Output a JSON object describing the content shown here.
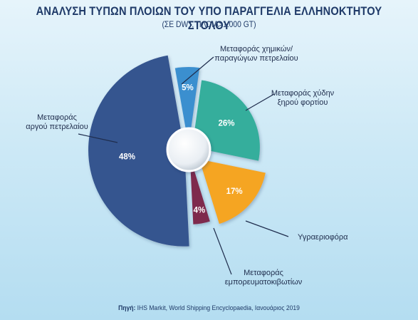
{
  "header": {
    "title": "ΑΝΑΛΥΣΗ ΤΥΠΩΝ ΠΛΟΙΩΝ ΤΟΥ ΥΠΟ ΠΑΡΑΓΓΕΛΙΑ ΕΛΛΗΝΟΚΤΗΤΟΥ ΣΤΟΛΟΥ",
    "subtitle": "(ΣΕ DWT, ΠΛΟΙΑ>1.000 GT)"
  },
  "source": {
    "prefix": "Πηγή:",
    "text": " IHS Markit, World Shipping Encyclopaedia, Ιανουάριος 2019"
  },
  "chart_data": {
    "type": "pie",
    "title": "ΑΝΑΛΥΣΗ ΤΥΠΩΝ ΠΛΟΙΩΝ ΤΟΥ ΥΠΟ ΠΑΡΑΓΓΕΛΙΑ ΕΛΛΗΝΟΚΤΗΤΟΥ ΣΤΟΛΟΥ",
    "subtitle": "(ΣΕ DWT, ΠΛΟΙΑ>1.000 GT)",
    "unit": "%",
    "slices": [
      {
        "label_lines": [
          "Μεταφοράς χημικών/",
          "παραγώγων πετρελαίου"
        ],
        "value": 5,
        "value_label": "5%",
        "color": "#3b8fcf"
      },
      {
        "label_lines": [
          "Μεταφοράς χύδην",
          "ξηρού φορτίου"
        ],
        "value": 26,
        "value_label": "26%",
        "color": "#34ae9c"
      },
      {
        "label_lines": [
          "Υγραεριοφόρα"
        ],
        "value": 17,
        "value_label": "17%",
        "color": "#f5a524"
      },
      {
        "label_lines": [
          "Μεταφοράς",
          "εμπορευματοκιβωτίων"
        ],
        "value": 4,
        "value_label": "4%",
        "color": "#7e2a4e"
      },
      {
        "label_lines": [
          "Μεταφοράς",
          "αργού πετρελαίου"
        ],
        "value": 48,
        "value_label": "48%",
        "color": "#34548f"
      }
    ]
  }
}
